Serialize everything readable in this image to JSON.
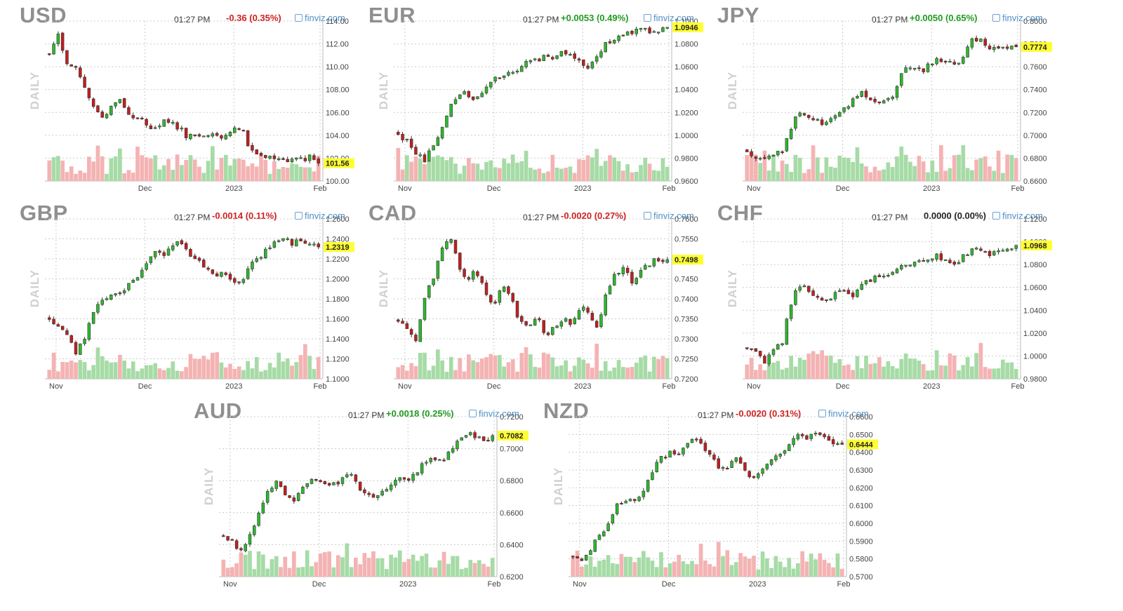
{
  "source_label": "finviz.com",
  "timeframe_label": "DAILY",
  "colors": {
    "up": "#2eb82e",
    "down": "#c41e1e",
    "vol_up": "#a6dba6",
    "vol_down": "#f4b3b3",
    "last_bg": "#ffff33",
    "grid": "#cccccc"
  },
  "chart_data": [
    {
      "type": "candlestick",
      "title": "USD",
      "time": "01:27 PM",
      "change": "-0.36 (0.35%)",
      "direction": "down",
      "x_ticks": [
        "Dec",
        "2023",
        "Feb"
      ],
      "y_ticks": [
        "114.00",
        "112.00",
        "110.00",
        "108.00",
        "106.00",
        "104.00",
        "102.00",
        "100.00"
      ],
      "ylim": [
        100.0,
        114.0
      ],
      "last_label": "101.56",
      "last_value": 101.56,
      "close_path": [
        111.2,
        112.8,
        110.5,
        109.8,
        108.5,
        106.5,
        105.6,
        106.2,
        107.2,
        106.0,
        105.5,
        105.2,
        104.5,
        105.3,
        105.0,
        104.6,
        103.8,
        104.2,
        103.8,
        104.0,
        103.7,
        104.3,
        104.8,
        103.0,
        102.5,
        102.2,
        102.0,
        101.8,
        101.7,
        101.9,
        102.1,
        101.56
      ]
    },
    {
      "type": "candlestick",
      "title": "EUR",
      "time": "01:27 PM",
      "change": "+0.0053 (0.49%)",
      "direction": "up",
      "x_ticks": [
        "Nov",
        "Dec",
        "2023",
        "Feb"
      ],
      "y_ticks": [
        "1.1000",
        "1.0800",
        "1.0600",
        "1.0400",
        "1.0200",
        "1.0000",
        "0.9800",
        "0.9600"
      ],
      "ylim": [
        0.96,
        1.1
      ],
      "last_label": "1.0946",
      "last_value": 1.0946,
      "close_path": [
        1.0,
        0.996,
        0.985,
        0.978,
        0.992,
        1.003,
        1.025,
        1.038,
        1.035,
        1.03,
        1.04,
        1.048,
        1.053,
        1.055,
        1.06,
        1.068,
        1.066,
        1.07,
        1.068,
        1.072,
        1.07,
        1.063,
        1.056,
        1.072,
        1.08,
        1.086,
        1.088,
        1.09,
        1.093,
        1.09,
        1.092,
        1.0946
      ]
    },
    {
      "type": "candlestick",
      "title": "JPY",
      "time": "01:27 PM",
      "change": "+0.0050 (0.65%)",
      "direction": "up",
      "x_ticks": [
        "Nov",
        "Dec",
        "2023",
        "Feb"
      ],
      "y_ticks": [
        "0.8000",
        "0.7800",
        "0.7600",
        "0.7400",
        "0.7200",
        "0.7000",
        "0.6800",
        "0.6600"
      ],
      "ylim": [
        0.66,
        0.8
      ],
      "last_label": "0.7774",
      "last_value": 0.7774,
      "close_path": [
        0.683,
        0.679,
        0.681,
        0.684,
        0.686,
        0.705,
        0.722,
        0.718,
        0.712,
        0.71,
        0.714,
        0.722,
        0.728,
        0.738,
        0.732,
        0.729,
        0.733,
        0.736,
        0.758,
        0.762,
        0.756,
        0.761,
        0.768,
        0.764,
        0.76,
        0.772,
        0.786,
        0.782,
        0.776,
        0.774,
        0.776,
        0.7774
      ]
    },
    {
      "type": "candlestick",
      "title": "GBP",
      "time": "01:27 PM",
      "change": "-0.0014 (0.11%)",
      "direction": "down",
      "x_ticks": [
        "Nov",
        "Dec",
        "2023",
        "Feb"
      ],
      "y_ticks": [
        "1.2600",
        "1.2400",
        "1.2200",
        "1.2000",
        "1.1800",
        "1.1600",
        "1.1400",
        "1.1200",
        "1.1000"
      ],
      "ylim": [
        1.1,
        1.26
      ],
      "last_label": "1.2319",
      "last_value": 1.2319,
      "close_path": [
        1.16,
        1.152,
        1.145,
        1.125,
        1.14,
        1.165,
        1.178,
        1.186,
        1.183,
        1.195,
        1.202,
        1.212,
        1.228,
        1.222,
        1.23,
        1.24,
        1.225,
        1.218,
        1.212,
        1.206,
        1.204,
        1.201,
        1.196,
        1.212,
        1.22,
        1.228,
        1.238,
        1.24,
        1.236,
        1.238,
        1.233,
        1.2319
      ]
    },
    {
      "type": "candlestick",
      "title": "CAD",
      "time": "01:27 PM",
      "change": "-0.0020 (0.27%)",
      "direction": "down",
      "x_ticks": [
        "Nov",
        "Dec",
        "2023",
        "Feb"
      ],
      "y_ticks": [
        "0.7600",
        "0.7550",
        "0.7500",
        "0.7450",
        "0.7400",
        "0.7350",
        "0.7300",
        "0.7250",
        "0.7200"
      ],
      "ylim": [
        0.72,
        0.76
      ],
      "last_label": "0.7498",
      "last_value": 0.7498,
      "close_path": [
        0.734,
        0.7325,
        0.729,
        0.74,
        0.745,
        0.752,
        0.755,
        0.748,
        0.745,
        0.747,
        0.742,
        0.738,
        0.744,
        0.74,
        0.734,
        0.733,
        0.736,
        0.731,
        0.733,
        0.735,
        0.734,
        0.738,
        0.737,
        0.732,
        0.742,
        0.746,
        0.748,
        0.744,
        0.747,
        0.749,
        0.75,
        0.7498
      ]
    },
    {
      "type": "candlestick",
      "title": "CHF",
      "time": "01:27 PM",
      "change": "0.0000 (0.00%)",
      "direction": "flat",
      "x_ticks": [
        "Nov",
        "Dec",
        "2023",
        "Feb"
      ],
      "y_ticks": [
        "1.1200",
        "1.1000",
        "1.0800",
        "1.0600",
        "1.0400",
        "1.0200",
        "1.0000",
        "0.9800"
      ],
      "ylim": [
        0.98,
        1.12
      ],
      "last_label": "1.0968",
      "last_value": 1.0968,
      "close_path": [
        1.008,
        1.004,
        0.992,
        1.005,
        1.01,
        1.045,
        1.062,
        1.058,
        1.05,
        1.046,
        1.055,
        1.06,
        1.052,
        1.062,
        1.066,
        1.07,
        1.068,
        1.075,
        1.082,
        1.08,
        1.086,
        1.084,
        1.088,
        1.082,
        1.08,
        1.088,
        1.094,
        1.09,
        1.088,
        1.092,
        1.094,
        1.0968
      ]
    },
    {
      "type": "candlestick",
      "title": "AUD",
      "time": "01:27 PM",
      "change": "+0.0018 (0.25%)",
      "direction": "up",
      "x_ticks": [
        "Nov",
        "Dec",
        "2023",
        "Feb"
      ],
      "y_ticks": [
        "0.7200",
        "0.7000",
        "0.6800",
        "0.6600",
        "0.6400",
        "0.6200"
      ],
      "ylim": [
        0.62,
        0.72
      ],
      "last_label": "0.7082",
      "last_value": 0.7082,
      "close_path": [
        0.645,
        0.643,
        0.635,
        0.645,
        0.66,
        0.673,
        0.68,
        0.672,
        0.666,
        0.675,
        0.68,
        0.682,
        0.676,
        0.678,
        0.685,
        0.682,
        0.672,
        0.669,
        0.67,
        0.676,
        0.682,
        0.68,
        0.684,
        0.69,
        0.695,
        0.692,
        0.698,
        0.705,
        0.71,
        0.708,
        0.704,
        0.7082
      ]
    },
    {
      "type": "candlestick",
      "title": "NZD",
      "time": "01:27 PM",
      "change": "-0.0020 (0.31%)",
      "direction": "down",
      "x_ticks": [
        "Nov",
        "Dec",
        "2023",
        "Feb"
      ],
      "y_ticks": [
        "0.6600",
        "0.6500",
        "0.6400",
        "0.6300",
        "0.6200",
        "0.6100",
        "0.6000",
        "0.5900",
        "0.5800",
        "0.5700"
      ],
      "ylim": [
        0.57,
        0.66
      ],
      "last_label": "0.6444",
      "last_value": 0.6444,
      "close_path": [
        0.58,
        0.579,
        0.586,
        0.592,
        0.6,
        0.61,
        0.614,
        0.612,
        0.618,
        0.628,
        0.636,
        0.64,
        0.638,
        0.644,
        0.648,
        0.642,
        0.636,
        0.63,
        0.632,
        0.638,
        0.628,
        0.624,
        0.632,
        0.638,
        0.64,
        0.644,
        0.65,
        0.648,
        0.65,
        0.648,
        0.646,
        0.6444
      ]
    }
  ]
}
